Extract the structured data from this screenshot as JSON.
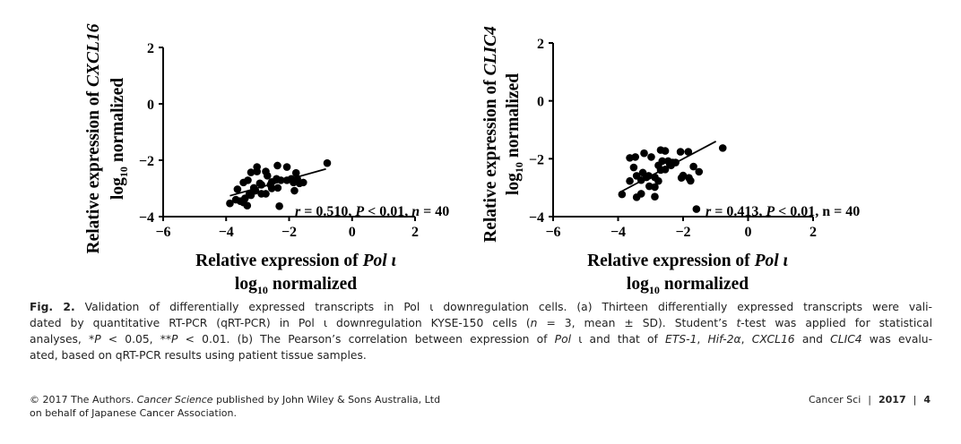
{
  "chart_data": [
    {
      "type": "scatter",
      "ylabel": [
        "Relative expression of ",
        "CXCL16"
      ],
      "ylabel2": "normalized",
      "xlabel": [
        "Relative expression of ",
        "Pol ι"
      ],
      "xlabel2": "normalized",
      "log_prefix": "log",
      "log_sub": "10",
      "xlim": [
        -6,
        2
      ],
      "ylim": [
        -4,
        2
      ],
      "xticks": [
        "−6",
        "−4",
        "−2",
        "0",
        "2"
      ],
      "yticks": [
        "2",
        "0",
        "−2",
        "−4"
      ],
      "annotation": [
        {
          "t": "r",
          "i": true
        },
        {
          "t": " = 0.510, ",
          "i": false
        },
        {
          "t": "P",
          "i": true
        },
        {
          "t": " < 0.01, ",
          "i": false
        },
        {
          "t": "n",
          "i": true
        },
        {
          "t": " = 40",
          "i": false
        }
      ],
      "trend": [
        [
          -3.88,
          -3.26
        ],
        [
          -0.83,
          -2.31
        ]
      ],
      "points": [
        [
          -3.88,
          -3.53
        ],
        [
          -3.64,
          -3.03
        ],
        [
          -3.69,
          -3.4
        ],
        [
          -3.55,
          -3.45
        ],
        [
          -3.45,
          -3.5
        ],
        [
          -3.33,
          -3.61
        ],
        [
          -3.45,
          -2.79
        ],
        [
          -3.31,
          -2.71
        ],
        [
          -3.21,
          -2.43
        ],
        [
          -3.02,
          -2.24
        ],
        [
          -3.02,
          -2.4
        ],
        [
          -3.12,
          -2.98
        ],
        [
          -3.26,
          -3.19
        ],
        [
          -2.88,
          -3.19
        ],
        [
          -2.74,
          -3.19
        ],
        [
          -2.88,
          -2.87
        ],
        [
          -2.74,
          -2.4
        ],
        [
          -2.69,
          -2.55
        ],
        [
          -2.55,
          -2.77
        ],
        [
          -2.55,
          -3.0
        ],
        [
          -2.4,
          -2.66
        ],
        [
          -2.37,
          -2.19
        ],
        [
          -2.31,
          -3.63
        ],
        [
          -2.07,
          -2.24
        ],
        [
          -2.07,
          -2.71
        ],
        [
          -1.86,
          -2.79
        ],
        [
          -1.83,
          -3.08
        ],
        [
          -1.78,
          -2.45
        ],
        [
          -1.74,
          -2.66
        ],
        [
          -1.67,
          -2.82
        ],
        [
          -1.55,
          -2.79
        ],
        [
          -0.79,
          -2.1
        ],
        [
          -2.93,
          -2.82
        ],
        [
          -2.59,
          -2.87
        ],
        [
          -2.26,
          -2.71
        ],
        [
          -3.21,
          -3.24
        ],
        [
          -3.4,
          -3.35
        ],
        [
          -3.07,
          -3.08
        ],
        [
          -1.93,
          -2.66
        ],
        [
          -2.36,
          -2.98
        ]
      ]
    },
    {
      "type": "scatter",
      "ylabel": [
        "Relative expression of ",
        "CLIC4"
      ],
      "ylabel2": "normalized",
      "xlabel": [
        "Relative expression of ",
        "Pol ι"
      ],
      "xlabel2": "normalized",
      "log_prefix": "log",
      "log_sub": "10",
      "xlim": [
        -6,
        2
      ],
      "ylim": [
        -4,
        2
      ],
      "xticks": [
        "−6",
        "−4",
        "−2",
        "0",
        "2"
      ],
      "yticks": [
        "2",
        "0",
        "−2",
        "−4"
      ],
      "annotation": [
        {
          "t": "r",
          "i": true
        },
        {
          "t": " = 0.413,  ",
          "i": false
        },
        {
          "t": "P",
          "i": true
        },
        {
          "t": " < 0.01, n = 40",
          "i": false
        }
      ],
      "trend": [
        [
          -3.93,
          -3.15
        ],
        [
          -0.99,
          -1.4
        ]
      ],
      "points": [
        [
          -3.88,
          -3.23
        ],
        [
          -3.64,
          -2.77
        ],
        [
          -3.64,
          -1.97
        ],
        [
          -3.47,
          -1.94
        ],
        [
          -3.52,
          -2.3
        ],
        [
          -3.43,
          -2.59
        ],
        [
          -3.43,
          -3.33
        ],
        [
          -3.29,
          -3.21
        ],
        [
          -3.29,
          -2.74
        ],
        [
          -3.2,
          -1.81
        ],
        [
          -3.13,
          -2.64
        ],
        [
          -3.04,
          -2.95
        ],
        [
          -2.98,
          -1.94
        ],
        [
          -2.87,
          -2.98
        ],
        [
          -2.87,
          -3.31
        ],
        [
          -2.76,
          -2.77
        ],
        [
          -2.76,
          -2.23
        ],
        [
          -2.69,
          -1.7
        ],
        [
          -2.55,
          -1.73
        ],
        [
          -2.69,
          -2.39
        ],
        [
          -2.55,
          -2.37
        ],
        [
          -2.46,
          -2.08
        ],
        [
          -2.37,
          -2.23
        ],
        [
          -2.32,
          -2.13
        ],
        [
          -2.08,
          -1.76
        ],
        [
          -2.05,
          -2.66
        ],
        [
          -2.0,
          -2.58
        ],
        [
          -1.84,
          -1.76
        ],
        [
          -1.82,
          -2.66
        ],
        [
          -1.77,
          -2.76
        ],
        [
          -1.68,
          -2.27
        ],
        [
          -1.51,
          -2.45
        ],
        [
          -1.59,
          -3.74
        ],
        [
          -0.78,
          -1.63
        ],
        [
          -3.06,
          -2.59
        ],
        [
          -2.64,
          -2.08
        ],
        [
          -2.41,
          -2.18
        ],
        [
          -3.24,
          -2.48
        ],
        [
          -2.87,
          -2.64
        ],
        [
          -2.23,
          -2.13
        ]
      ]
    }
  ],
  "caption": {
    "lines": [
      [
        {
          "t": "Fig. 2.",
          "b": true
        },
        {
          "t": "   Validation of differentially expressed transcripts in Pol ι downregulation cells. (a) Thirteen differentially expressed transcripts were vali-"
        }
      ],
      [
        {
          "t": "dated by quantitative RT-PCR (qRT-PCR) in Pol ι downregulation KYSE-150 cells ("
        },
        {
          "t": "n",
          "i": true
        },
        {
          "t": " = 3, mean ± SD). Student’s "
        },
        {
          "t": "t",
          "i": true
        },
        {
          "t": "-test was applied for statistical"
        }
      ],
      [
        {
          "t": "analyses, *"
        },
        {
          "t": "P",
          "i": true
        },
        {
          "t": " < 0.05, **"
        },
        {
          "t": "P",
          "i": true
        },
        {
          "t": " < 0.01. (b) The Pearson’s correlation between expression of "
        },
        {
          "t": "Pol",
          "i": true
        },
        {
          "t": " ι and that of "
        },
        {
          "t": "ETS-1",
          "i": true
        },
        {
          "t": ", "
        },
        {
          "t": "Hif-2α",
          "i": true
        },
        {
          "t": ", "
        },
        {
          "t": "CXCL16",
          "i": true
        },
        {
          "t": " and "
        },
        {
          "t": "CLIC4",
          "i": true
        },
        {
          "t": " was evalu-"
        }
      ],
      [
        {
          "t": "ated, based on qRT-PCR results using patient tissue samples."
        }
      ]
    ]
  },
  "footer": {
    "left_lines": [
      [
        {
          "t": "© 2017 The Authors. "
        },
        {
          "t": "Cancer Science",
          "i": true
        },
        {
          "t": " published by John Wiley & Sons Australia, Ltd"
        }
      ],
      [
        {
          "t": "on behalf of Japanese Cancer Association."
        }
      ]
    ],
    "journal": "Cancer Sci",
    "sep": "|",
    "year": "2017",
    "page": "4"
  }
}
